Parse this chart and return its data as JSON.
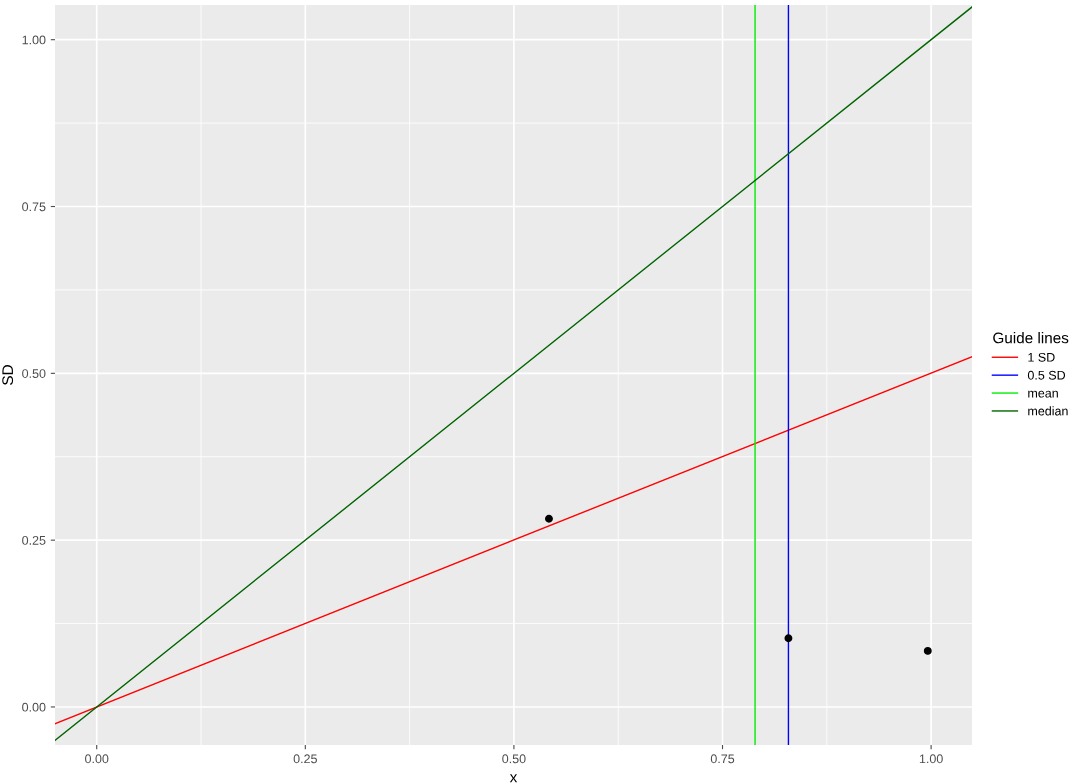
{
  "chart_data": {
    "type": "line",
    "xlabel": "x",
    "ylabel": "SD",
    "legend_title": "Guide lines",
    "xlim": [
      -0.05,
      1.049
    ],
    "ylim": [
      -0.057,
      1.052
    ],
    "xticks": [
      {
        "value": 0,
        "label": "0.00"
      },
      {
        "value": 0.25,
        "label": "0.25"
      },
      {
        "value": 0.5,
        "label": "0.50"
      },
      {
        "value": 0.75,
        "label": "0.75"
      },
      {
        "value": 1,
        "label": "1.00"
      }
    ],
    "yticks": [
      {
        "value": 0,
        "label": "0.00"
      },
      {
        "value": 0.25,
        "label": "0.25"
      },
      {
        "value": 0.5,
        "label": "0.50"
      },
      {
        "value": 0.75,
        "label": "0.75"
      },
      {
        "value": 1,
        "label": "1.00"
      }
    ],
    "grid": true,
    "legend": "right",
    "series": [
      {
        "name": "1 SD",
        "color": "#ff0000",
        "x": [
          -0.05,
          1.049
        ],
        "values": [
          -0.025,
          0.525
        ]
      },
      {
        "name": "0.5 SD",
        "color": "#0000ff",
        "x": [
          0.829,
          0.829
        ],
        "values": [
          -0.057,
          1.052
        ]
      },
      {
        "name": "mean",
        "color": "#00ee00",
        "x": [
          0.789,
          0.789
        ],
        "values": [
          -0.057,
          1.052
        ]
      },
      {
        "name": "median",
        "color": "#006400",
        "x": [
          -0.05,
          1.049
        ],
        "values": [
          -0.05,
          1.049
        ]
      },
      {
        "type": "scatter",
        "color": "#000000",
        "x": [
          0.542,
          0.829,
          0.996
        ],
        "values": [
          0.282,
          0.103,
          0.084
        ]
      }
    ]
  }
}
